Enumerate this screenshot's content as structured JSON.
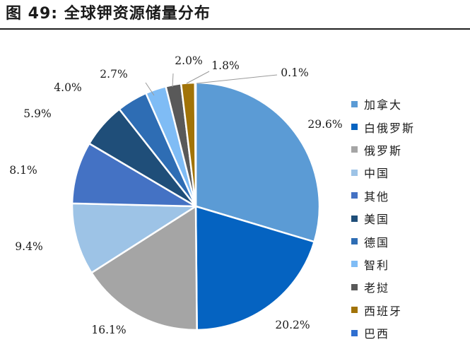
{
  "figure": {
    "title": "图  49:  全球钾资源储量分布"
  },
  "chart_data": {
    "type": "pie",
    "title": "",
    "start_angle_deg": 0,
    "direction": "clockwise",
    "legend_position": "right",
    "slices": [
      {
        "name": "加拿大",
        "value": 29.6,
        "label": "29.6%",
        "color": "#5B9BD5"
      },
      {
        "name": "白俄罗斯",
        "value": 20.2,
        "label": "20.2%",
        "color": "#0563C1"
      },
      {
        "name": "俄罗斯",
        "value": 16.1,
        "label": "16.1%",
        "color": "#A5A5A5"
      },
      {
        "name": "中国",
        "value": 9.4,
        "label": "9.4%",
        "color": "#9DC3E6"
      },
      {
        "name": "其他",
        "value": 8.1,
        "label": "8.1%",
        "color": "#4472C4"
      },
      {
        "name": "美国",
        "value": 5.9,
        "label": "5.9%",
        "color": "#1F4E79"
      },
      {
        "name": "德国",
        "value": 4.0,
        "label": "4.0%",
        "color": "#2E6DB4"
      },
      {
        "name": "智利",
        "value": 2.7,
        "label": "2.7%",
        "color": "#7FBCF5"
      },
      {
        "name": "老挝",
        "value": 2.0,
        "label": "2.0%",
        "color": "#595959"
      },
      {
        "name": "西班牙",
        "value": 1.8,
        "label": "1.8%",
        "color": "#A17308"
      },
      {
        "name": "巴西",
        "value": 0.1,
        "label": "0.1%",
        "color": "#2F6FD0"
      }
    ]
  }
}
